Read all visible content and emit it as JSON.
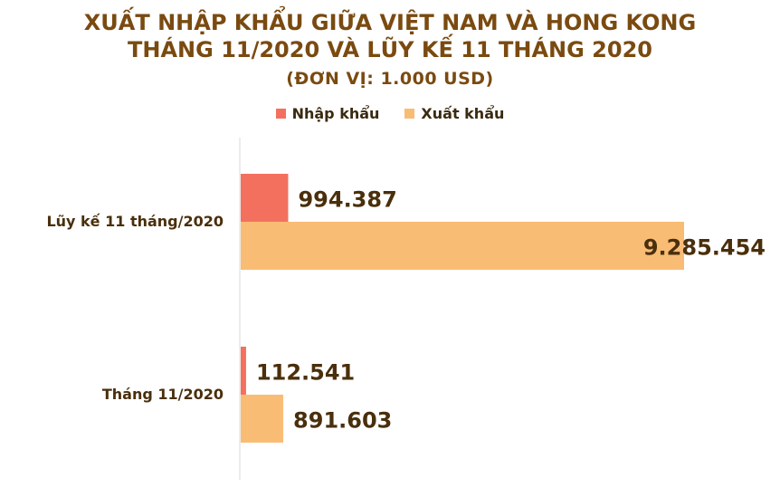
{
  "title": {
    "line1": "XUẤT NHẬP KHẨU GIỮA VIỆT NAM VÀ HONG KONG",
    "line2": "THÁNG 11/2020 VÀ LŨY KẾ 11 THÁNG 2020",
    "unit": "(ĐƠN VỊ: 1.000 USD)"
  },
  "colors": {
    "import": "#f4705e",
    "export": "#f9bc75",
    "text": "#4a2f0c"
  },
  "chart_data": {
    "type": "bar",
    "orientation": "horizontal",
    "categories": [
      "Lũy kế 11 tháng/2020",
      "Tháng 11/2020"
    ],
    "series": [
      {
        "name": "Nhập khẩu",
        "values": [
          994387,
          112541
        ],
        "labels": [
          "994.387",
          "112.541"
        ]
      },
      {
        "name": "Xuất khẩu",
        "values": [
          9285454,
          891603
        ],
        "labels": [
          "9.285.454",
          "891.603"
        ]
      }
    ],
    "xlim": [
      0,
      9285454
    ],
    "legend": "top-center",
    "grid": false
  }
}
